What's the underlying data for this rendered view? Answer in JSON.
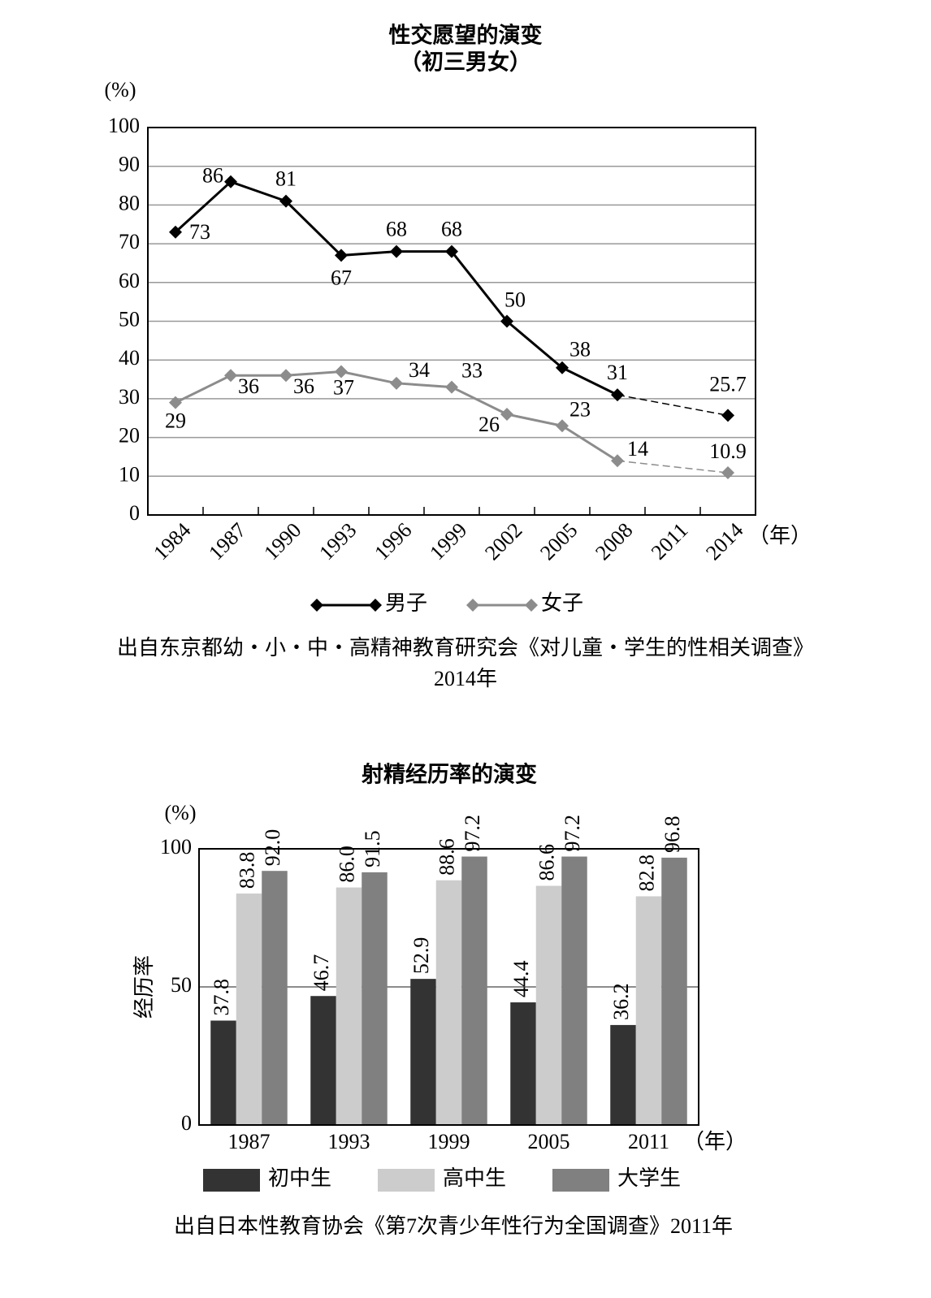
{
  "chart_data": [
    {
      "type": "line",
      "title": "性交愿望的演变",
      "subtitle": "（初三男女）",
      "y_unit": "(%)",
      "x_label": "（年）",
      "categories": [
        "1984",
        "1987",
        "1990",
        "1993",
        "1996",
        "1999",
        "2002",
        "2005",
        "2008",
        "2011",
        "2014"
      ],
      "series": [
        {
          "name": "男子",
          "color": "#000000",
          "values": [
            73,
            86,
            81,
            67,
            68,
            68,
            50,
            38,
            31,
            null,
            25.7
          ]
        },
        {
          "name": "女子",
          "color": "#8c8c8c",
          "values": [
            29,
            36,
            36,
            37,
            34,
            33,
            26,
            23,
            14,
            null,
            10.9
          ]
        }
      ],
      "ylim": [
        0,
        100
      ],
      "yticks": [
        0,
        10,
        20,
        30,
        40,
        50,
        60,
        70,
        80,
        90,
        100
      ],
      "grid": true,
      "connect_gaps": "dashed",
      "legend": "bottom",
      "source": [
        "出自东京都幼・小・中・高精神教育研究会《对儿童・学生的性相关调查》",
        "2014年"
      ]
    },
    {
      "type": "bar",
      "title": "射精经历率的演变",
      "y_unit": "(%)",
      "y_label": "经历率",
      "x_label": "（年）",
      "categories": [
        "1987",
        "1993",
        "1999",
        "2005",
        "2011"
      ],
      "series": [
        {
          "name": "初中生",
          "color": "#333333",
          "values": [
            37.8,
            46.7,
            52.9,
            44.4,
            36.2
          ],
          "value_labels": [
            "37.8",
            "46.7",
            "52.9",
            "44.4",
            "36.2"
          ]
        },
        {
          "name": "高中生",
          "color": "#cccccc",
          "values": [
            83.8,
            86.0,
            88.6,
            86.6,
            82.8
          ],
          "value_labels": [
            "83.8",
            "86.0",
            "88.6",
            "86.6",
            "82.8"
          ]
        },
        {
          "name": "大学生",
          "color": "#808080",
          "values": [
            92.0,
            91.5,
            97.2,
            97.2,
            96.8
          ],
          "value_labels": [
            "92.0",
            "91.5",
            "97.2",
            "97.2",
            "96.8"
          ]
        }
      ],
      "ylim": [
        0,
        100
      ],
      "yticks": [
        0,
        50,
        100
      ],
      "grid": true,
      "legend": "bottom",
      "source": [
        "出自日本性教育协会《第7次青少年性行为全国调查》2011年"
      ]
    }
  ]
}
